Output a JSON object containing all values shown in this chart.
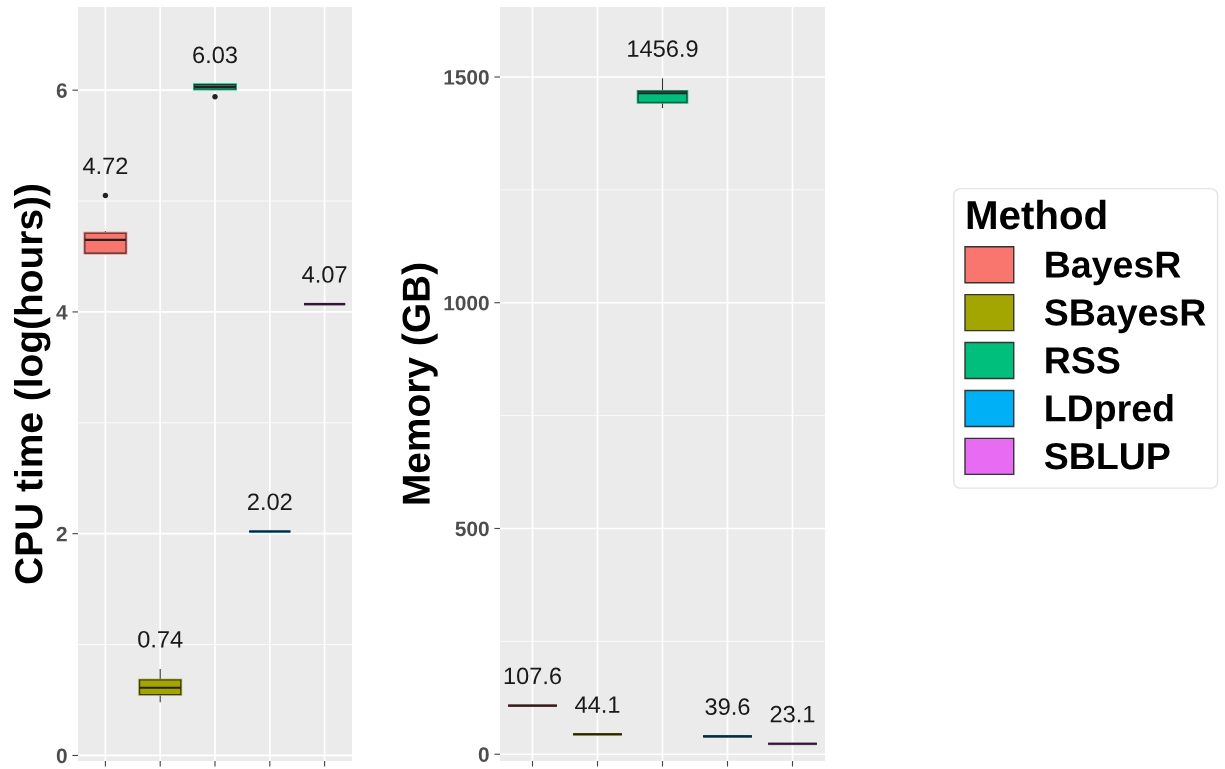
{
  "chart_data": [
    {
      "type": "box",
      "ylabel": "CPU time (log(hours))",
      "categories": [
        null,
        null,
        null,
        null,
        null
      ],
      "colors": [
        "#f8766d",
        "#a3a500",
        "#00bf7d",
        "#00b0f6",
        "#e76bf3"
      ],
      "boxes": [
        {
          "low": 4.52,
          "q1": 4.53,
          "median": 4.65,
          "q3": 4.71,
          "high": 4.73,
          "outliers": [
            5.05
          ]
        },
        {
          "low": 0.48,
          "q1": 0.55,
          "median": 0.61,
          "q3": 0.68,
          "high": 0.78
        },
        {
          "low": 6.01,
          "q1": 6.01,
          "median": 6.03,
          "q3": 6.05,
          "high": 6.05,
          "outliers": [
            5.94
          ]
        },
        {
          "low": 2.02,
          "q1": 2.02,
          "median": 2.02,
          "q3": 2.02,
          "high": 2.02
        },
        {
          "low": 4.07,
          "q1": 4.07,
          "median": 4.07,
          "q3": 4.07,
          "high": 4.07
        }
      ],
      "annotations": [
        "4.72",
        "0.74",
        "6.03",
        "2.02",
        "4.07"
      ],
      "ylim": [
        -0.05,
        6.75
      ],
      "yticks": [
        0,
        2,
        4,
        6
      ],
      "grid": true,
      "legend": false
    },
    {
      "type": "box",
      "ylabel": "Memory (GB)",
      "legend_title": "Method",
      "categories": [
        null,
        null,
        null,
        null,
        null
      ],
      "series": [
        {
          "name": "BayesR",
          "color": "#f8766d",
          "boxes": [
            {
              "low": 107.6,
              "q1": 107.6,
              "median": 107.6,
              "q3": 107.6,
              "high": 107.6
            },
            null,
            null,
            null,
            null
          ]
        },
        {
          "name": "SBayesR",
          "color": "#a3a500",
          "boxes": [
            null,
            {
              "low": 44.1,
              "q1": 44.1,
              "median": 44.1,
              "q3": 44.1,
              "high": 44.1
            },
            null,
            null,
            null
          ]
        },
        {
          "name": "RSS",
          "color": "#00bf7d",
          "boxes": [
            null,
            null,
            {
              "low": 1431,
              "q1": 1444,
              "median": 1464,
              "q3": 1468,
              "high": 1497
            },
            null,
            null
          ]
        },
        {
          "name": "LDpred",
          "color": "#00b0f6",
          "boxes": [
            null,
            null,
            null,
            {
              "low": 39.6,
              "q1": 39.6,
              "median": 39.6,
              "q3": 39.6,
              "high": 39.6
            },
            null
          ]
        },
        {
          "name": "SBLUP",
          "color": "#e76bf3",
          "boxes": [
            null,
            null,
            null,
            null,
            {
              "low": 23.1,
              "q1": 23.1,
              "median": 23.1,
              "q3": 23.1,
              "high": 23.1
            }
          ]
        }
      ],
      "annotations": [
        "107.6",
        "44.1",
        "1456.9",
        "39.6",
        "23.1"
      ],
      "ylim": [
        -15,
        1655
      ],
      "yticks": [
        0,
        500,
        1000,
        1500
      ],
      "grid": true,
      "legend": "right"
    }
  ]
}
